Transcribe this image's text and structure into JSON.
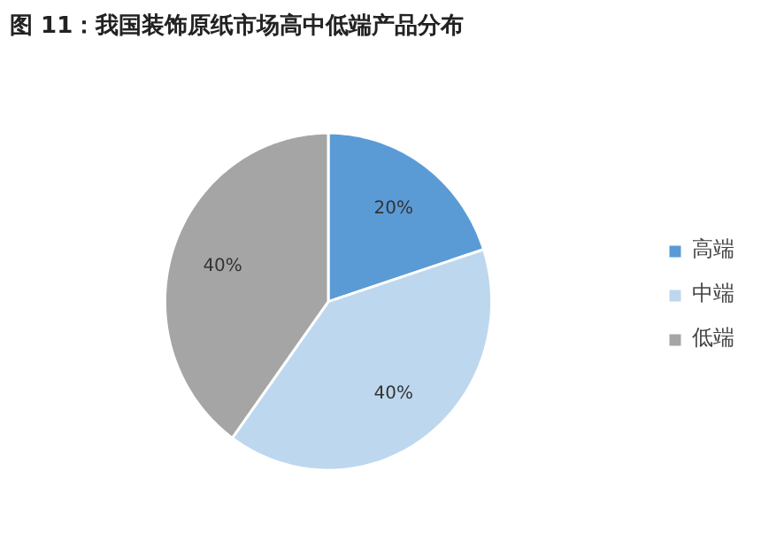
{
  "chart_data": {
    "type": "pie",
    "title": "图 11：我国装饰原纸市场高中低端产品分布",
    "categories": [
      "高端",
      "中端",
      "低端"
    ],
    "values": [
      20,
      40,
      40
    ],
    "colors": [
      "#5b9bd5",
      "#bdd7ee",
      "#a5a5a5"
    ],
    "value_labels": [
      "20%",
      "40%",
      "40%"
    ],
    "legend": "right"
  }
}
